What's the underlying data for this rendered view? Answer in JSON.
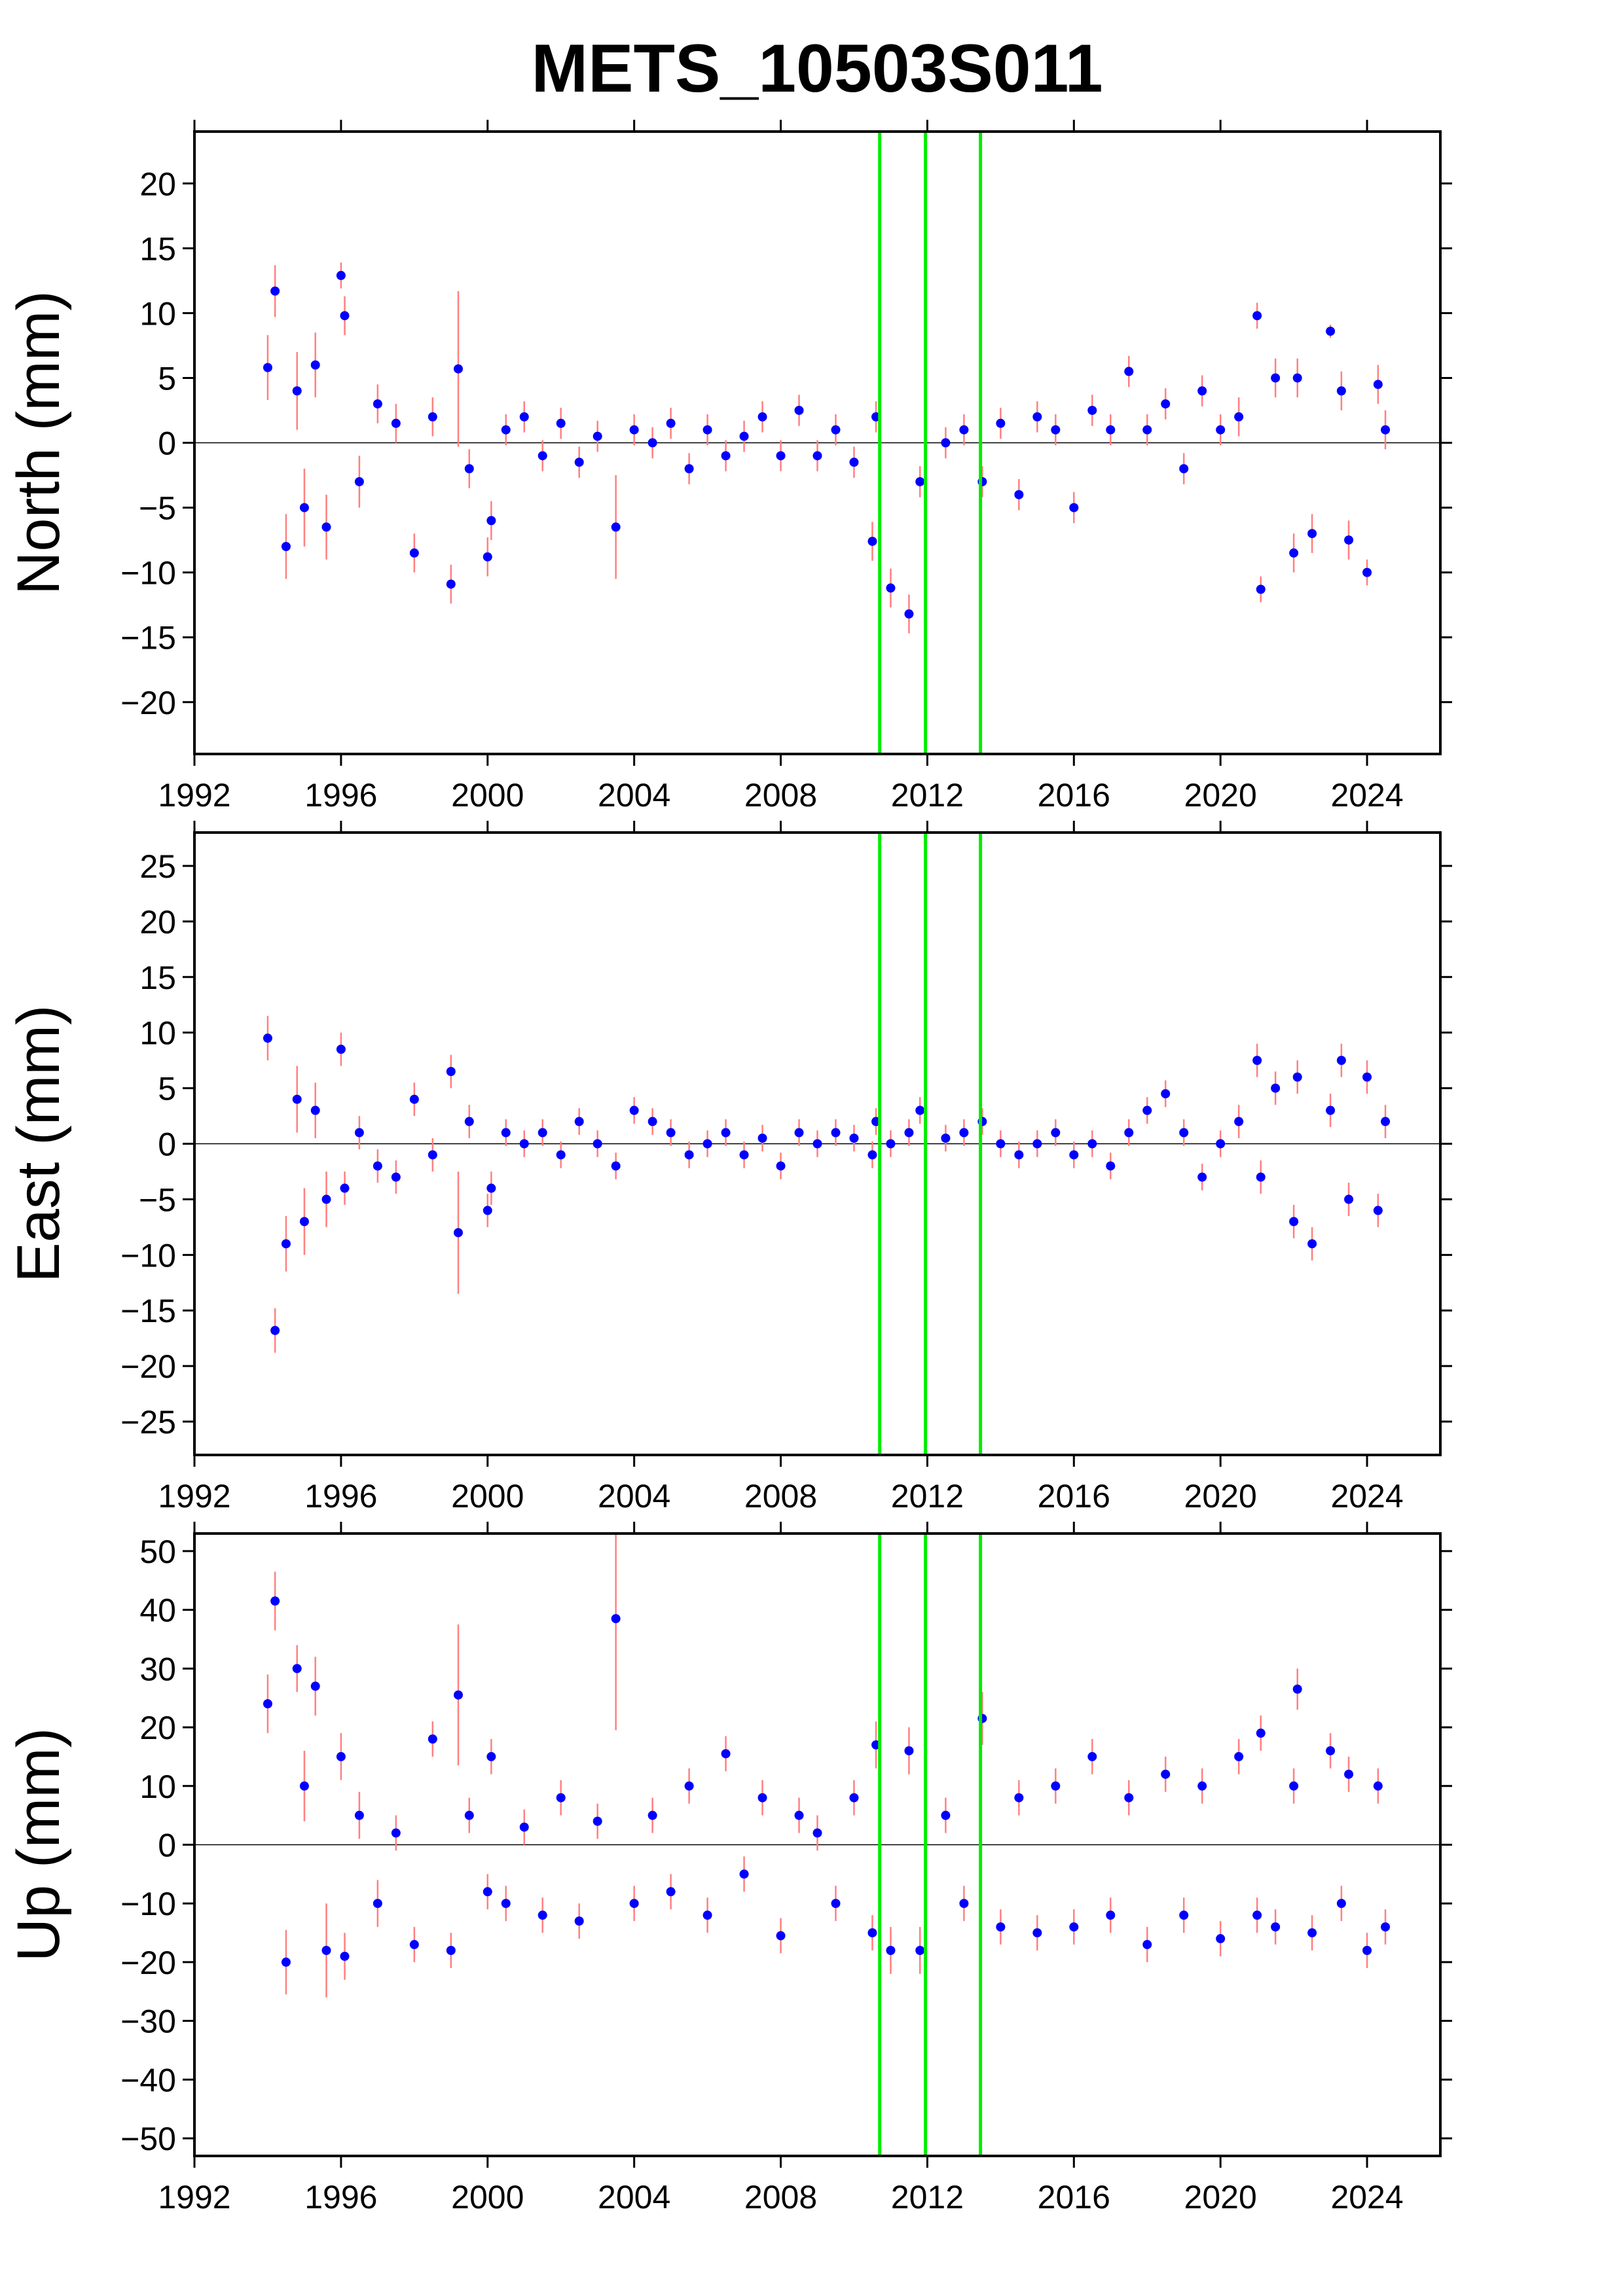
{
  "chart_data": [
    {
      "type": "scatter",
      "title": "METS_10503S011",
      "ylabel": "North (mm)",
      "color": "#0000ff",
      "error_color": "#ff8080",
      "vlines": [
        2010.7,
        2011.95,
        2013.45
      ],
      "vline_color": "#00ee00",
      "xlim": [
        1992,
        2026
      ],
      "xticks": [
        1992,
        1996,
        2000,
        2004,
        2008,
        2012,
        2016,
        2020,
        2024
      ],
      "ylim": [
        -24,
        24
      ],
      "yticks": [
        {
          "value": -20,
          "label": "−20"
        },
        {
          "value": -15,
          "label": "−15"
        },
        {
          "value": -10,
          "label": "−10"
        },
        {
          "value": -5,
          "label": "−5"
        },
        0,
        5,
        10,
        15,
        20
      ],
      "x": [
        1994.0,
        1994.2,
        1994.5,
        1994.8,
        1995.0,
        1995.3,
        1995.6,
        1996.0,
        1996.1,
        1996.5,
        1997.0,
        1997.5,
        1998.0,
        1998.5,
        1999.0,
        1999.2,
        1999.5,
        2000.0,
        2000.1,
        2000.5,
        2001.0,
        2001.5,
        2002.0,
        2002.5,
        2003.0,
        2003.5,
        2004.0,
        2004.5,
        2005.0,
        2005.5,
        2006.0,
        2006.5,
        2007.0,
        2007.5,
        2008.0,
        2008.5,
        2009.0,
        2009.5,
        2010.0,
        2010.5,
        2010.6,
        2011.0,
        2011.5,
        2011.8,
        2012.5,
        2013.0,
        2013.5,
        2014.0,
        2014.5,
        2015.0,
        2015.5,
        2016.0,
        2016.5,
        2017.0,
        2017.5,
        2018.0,
        2018.5,
        2019.0,
        2019.5,
        2020.0,
        2020.5,
        2021.0,
        2021.1,
        2021.5,
        2022.0,
        2022.1,
        2022.5,
        2023.0,
        2023.3,
        2023.5,
        2024.0,
        2024.3,
        2024.5
      ],
      "values": [
        5.8,
        11.7,
        -8,
        4,
        -5,
        6,
        -6.5,
        12.9,
        9.8,
        -3,
        3,
        1.5,
        -8.5,
        2,
        -10.9,
        5.7,
        -2,
        -8.8,
        -6,
        1,
        2,
        -1,
        1.5,
        -1.5,
        0.5,
        -6.5,
        1,
        0,
        1.5,
        -2,
        1,
        -1,
        0.5,
        2,
        -1,
        2.5,
        -1,
        1,
        -1.5,
        -7.6,
        2,
        -11.2,
        -13.2,
        -3,
        0,
        1,
        -3,
        1.5,
        -4,
        2,
        1,
        -5,
        2.5,
        1,
        5.5,
        1,
        3,
        -2,
        4,
        1,
        2,
        9.8,
        -11.3,
        5,
        -8.5,
        5,
        -7,
        8.6,
        4,
        -7.5,
        -10,
        4.5,
        1
      ],
      "errors": [
        2.5,
        2,
        2.5,
        3,
        3,
        2.5,
        2.5,
        1,
        1.5,
        2,
        1.5,
        1.5,
        1.5,
        1.5,
        1.5,
        6,
        1.5,
        1.5,
        1.5,
        1.2,
        1.2,
        1.2,
        1.2,
        1.2,
        1.2,
        4,
        1.2,
        1.2,
        1.2,
        1.2,
        1.2,
        1.2,
        1.2,
        1.2,
        1.2,
        1.2,
        1.2,
        1.2,
        1.2,
        1.5,
        1.2,
        1.5,
        1.5,
        1.2,
        1.2,
        1.2,
        1.2,
        1.2,
        1.2,
        1.2,
        1.2,
        1.2,
        1.2,
        1.2,
        1.2,
        1.2,
        1.2,
        1.2,
        1.2,
        1.2,
        1.5,
        1,
        1,
        1.5,
        1.5,
        1.5,
        1.5,
        0.5,
        1.5,
        1.5,
        1,
        1.5,
        1.5
      ]
    },
    {
      "type": "scatter",
      "ylabel": "East (mm)",
      "color": "#0000ff",
      "error_color": "#ff8080",
      "vlines": [
        2010.7,
        2011.95,
        2013.45
      ],
      "vline_color": "#00ee00",
      "xlim": [
        1992,
        2026
      ],
      "xticks": [
        1992,
        1996,
        2000,
        2004,
        2008,
        2012,
        2016,
        2020,
        2024
      ],
      "ylim": [
        -28,
        28
      ],
      "yticks": [
        {
          "value": -25,
          "label": "−25"
        },
        {
          "value": -20,
          "label": "−20"
        },
        {
          "value": -15,
          "label": "−15"
        },
        {
          "value": -10,
          "label": "−10"
        },
        {
          "value": -5,
          "label": "−5"
        },
        0,
        5,
        10,
        15,
        20,
        25
      ],
      "x": [
        1994.0,
        1994.2,
        1994.5,
        1994.8,
        1995.0,
        1995.3,
        1995.6,
        1996.0,
        1996.1,
        1996.5,
        1997.0,
        1997.5,
        1998.0,
        1998.5,
        1999.0,
        1999.2,
        1999.5,
        2000.0,
        2000.1,
        2000.5,
        2001.0,
        2001.5,
        2002.0,
        2002.5,
        2003.0,
        2003.5,
        2004.0,
        2004.5,
        2005.0,
        2005.5,
        2006.0,
        2006.5,
        2007.0,
        2007.5,
        2008.0,
        2008.5,
        2009.0,
        2009.5,
        2010.0,
        2010.5,
        2010.6,
        2011.0,
        2011.5,
        2011.8,
        2012.5,
        2013.0,
        2013.5,
        2014.0,
        2014.5,
        2015.0,
        2015.5,
        2016.0,
        2016.5,
        2017.0,
        2017.5,
        2018.0,
        2018.5,
        2019.0,
        2019.5,
        2020.0,
        2020.5,
        2021.0,
        2021.1,
        2021.5,
        2022.0,
        2022.1,
        2022.5,
        2023.0,
        2023.3,
        2023.5,
        2024.0,
        2024.3,
        2024.5
      ],
      "values": [
        9.5,
        -16.8,
        -9,
        4,
        -7,
        3,
        -5,
        8.5,
        -4,
        1,
        -2,
        -3,
        4,
        -1,
        6.5,
        -8,
        2,
        -6,
        -4,
        1,
        0,
        1,
        -1,
        2,
        0,
        -2,
        3,
        2,
        1,
        -1,
        0,
        1,
        -1,
        0.5,
        -2,
        1,
        0,
        1,
        0.5,
        -1,
        2,
        0,
        1,
        3,
        0.5,
        1,
        2,
        0,
        -1,
        0,
        1,
        -1,
        0,
        -2,
        1,
        3,
        4.5,
        1,
        -3,
        0,
        2,
        7.5,
        -3,
        5,
        -7,
        6,
        -9,
        3,
        7.5,
        -5,
        6,
        -6,
        2
      ],
      "errors": [
        2,
        2,
        2.5,
        3,
        3,
        2.5,
        2.5,
        1.5,
        1.5,
        1.5,
        1.5,
        1.5,
        1.5,
        1.5,
        1.5,
        5.5,
        1.5,
        1.5,
        1.5,
        1.2,
        1.2,
        1.2,
        1.2,
        1.2,
        1.2,
        1.2,
        1.2,
        1.2,
        1.2,
        1.2,
        1.2,
        1.2,
        1.2,
        1.2,
        1.2,
        1.2,
        1.2,
        1.2,
        1.2,
        1.2,
        1.2,
        1.2,
        1.2,
        1.2,
        1.2,
        1.2,
        1.2,
        1.2,
        1.2,
        1.2,
        1.2,
        1.2,
        1.2,
        1.2,
        1.2,
        1.2,
        1.2,
        1.2,
        1.2,
        1.2,
        1.5,
        1.5,
        1.5,
        1.5,
        1.5,
        1.5,
        1.5,
        1.5,
        1.5,
        1.5,
        1.5,
        1.5,
        1.5
      ]
    },
    {
      "type": "scatter",
      "ylabel": "Up (mm)",
      "color": "#0000ff",
      "error_color": "#ff8080",
      "vlines": [
        2010.7,
        2011.95,
        2013.45
      ],
      "vline_color": "#00ee00",
      "xlim": [
        1992,
        2026
      ],
      "xticks": [
        1992,
        1996,
        2000,
        2004,
        2008,
        2012,
        2016,
        2020,
        2024
      ],
      "ylim": [
        -53,
        53
      ],
      "yticks": [
        {
          "value": -50,
          "label": "−50"
        },
        {
          "value": -40,
          "label": "−40"
        },
        {
          "value": -30,
          "label": "−30"
        },
        {
          "value": -20,
          "label": "−20"
        },
        {
          "value": -10,
          "label": "−10"
        },
        0,
        10,
        20,
        30,
        40,
        50
      ],
      "x": [
        1994.0,
        1994.2,
        1994.5,
        1994.8,
        1995.0,
        1995.3,
        1995.6,
        1996.0,
        1996.1,
        1996.5,
        1997.0,
        1997.5,
        1998.0,
        1998.5,
        1999.0,
        1999.2,
        1999.5,
        2000.0,
        2000.1,
        2000.5,
        2001.0,
        2001.5,
        2002.0,
        2002.5,
        2003.0,
        2003.5,
        2004.0,
        2004.5,
        2005.0,
        2005.5,
        2006.0,
        2006.5,
        2007.0,
        2007.5,
        2008.0,
        2008.5,
        2009.0,
        2009.5,
        2010.0,
        2010.5,
        2010.6,
        2011.0,
        2011.5,
        2011.8,
        2012.5,
        2013.0,
        2013.5,
        2014.0,
        2014.5,
        2015.0,
        2015.5,
        2016.0,
        2016.5,
        2017.0,
        2017.5,
        2018.0,
        2018.5,
        2019.0,
        2019.5,
        2020.0,
        2020.5,
        2021.0,
        2021.1,
        2021.5,
        2022.0,
        2022.1,
        2022.5,
        2023.0,
        2023.3,
        2023.5,
        2024.0,
        2024.3,
        2024.5
      ],
      "values": [
        24,
        41.5,
        -20,
        30,
        10,
        27,
        -18,
        15,
        -19,
        5,
        -10,
        2,
        -17,
        18,
        -18,
        25.5,
        5,
        -8,
        15,
        -10,
        3,
        -12,
        8,
        -13,
        4,
        38.5,
        -10,
        5,
        -8,
        10,
        -12,
        15.5,
        -5,
        8,
        -15.5,
        5,
        2,
        -10,
        8,
        -15,
        17,
        -18,
        16,
        -18,
        5,
        -10,
        21.5,
        -14,
        8,
        -15,
        10,
        -14,
        15,
        -12,
        8,
        -17,
        12,
        -12,
        10,
        -16,
        15,
        -12,
        19,
        -14,
        10,
        26.5,
        -15,
        16,
        -10,
        12,
        -18,
        10,
        -14
      ],
      "errors": [
        5,
        5,
        5.5,
        4,
        6,
        5,
        8,
        4,
        4,
        4,
        4,
        3,
        3,
        3,
        3,
        12,
        3,
        3,
        3,
        3,
        3,
        3,
        3,
        3,
        3,
        19,
        3,
        3,
        3,
        3,
        3,
        3,
        3,
        3,
        3,
        3,
        3,
        3,
        3,
        3,
        4,
        4,
        4,
        4,
        3,
        3,
        4.5,
        3,
        3,
        3,
        3,
        3,
        3,
        3,
        3,
        3,
        3,
        3,
        3,
        3,
        3,
        3,
        3,
        3,
        3,
        3.5,
        3,
        3,
        3,
        3,
        3,
        3,
        3
      ]
    }
  ]
}
